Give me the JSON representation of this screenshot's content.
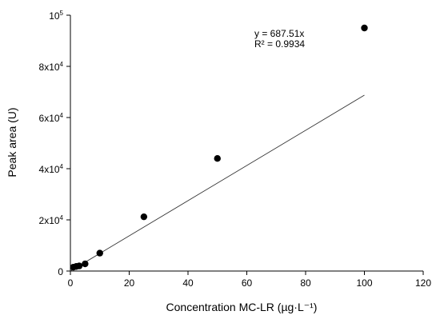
{
  "chart_data": {
    "type": "scatter",
    "xlabel": "Concentration MC-LR (µg·L⁻¹)",
    "ylabel": "Peak area (U)",
    "xlim": [
      0,
      120
    ],
    "ylim": [
      0,
      100000
    ],
    "x_ticks": [
      0,
      20,
      40,
      60,
      80,
      100,
      120
    ],
    "x_tick_labels": [
      "0",
      "20",
      "40",
      "60",
      "80",
      "100",
      "120"
    ],
    "y_ticks": [
      0,
      20000,
      40000,
      60000,
      80000,
      100000
    ],
    "y_tick_labels": [
      {
        "base": "0",
        "exp": ""
      },
      {
        "base": "2x10",
        "exp": "4"
      },
      {
        "base": "4x10",
        "exp": "4"
      },
      {
        "base": "6x10",
        "exp": "4"
      },
      {
        "base": "8x10",
        "exp": "4"
      },
      {
        "base": "10",
        "exp": "5"
      }
    ],
    "x": [
      1,
      2,
      3,
      5,
      10,
      25,
      50,
      100
    ],
    "y": [
      1500,
      1800,
      2000,
      2800,
      7000,
      21200,
      44000,
      95000
    ],
    "fit": {
      "slope": 687.51,
      "intercept": 0,
      "x_range": [
        0,
        100
      ],
      "equation": "y = 687.51x",
      "r_squared": "R² = 0.9934"
    },
    "grid": false,
    "legend": "none"
  }
}
